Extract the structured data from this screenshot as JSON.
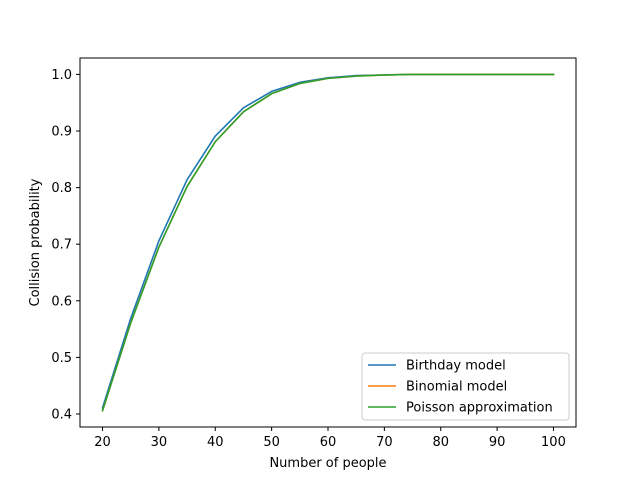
{
  "chart_data": {
    "type": "line",
    "title": "",
    "xlabel": "Number of people",
    "ylabel": "Collision probability",
    "xlim": [
      16,
      104
    ],
    "ylim": [
      0.377,
      1.029
    ],
    "xticks": [
      20,
      30,
      40,
      50,
      60,
      70,
      80,
      90,
      100
    ],
    "yticks": [
      0.4,
      0.5,
      0.6,
      0.7,
      0.8,
      0.9,
      1.0
    ],
    "xtick_labels": [
      "20",
      "30",
      "40",
      "50",
      "60",
      "70",
      "80",
      "90",
      "100"
    ],
    "ytick_labels": [
      "0.4",
      "0.5",
      "0.6",
      "0.7",
      "0.8",
      "0.9",
      "1.0"
    ],
    "grid": false,
    "legend_position": "lower-right",
    "x": [
      20,
      25,
      30,
      35,
      40,
      45,
      50,
      55,
      60,
      65,
      70,
      75,
      80,
      85,
      90,
      95,
      100
    ],
    "series": [
      {
        "name": "Birthday model",
        "color": "#1f77b4",
        "values": [
          0.411,
          0.569,
          0.706,
          0.814,
          0.891,
          0.941,
          0.97,
          0.986,
          0.994,
          0.998,
          0.999,
          1.0,
          1.0,
          1.0,
          1.0,
          1.0,
          1.0
        ]
      },
      {
        "name": "Binomial model",
        "color": "#ff7f0e",
        "values": [
          0.406,
          0.561,
          0.695,
          0.802,
          0.881,
          0.934,
          0.966,
          0.984,
          0.993,
          0.997,
          0.999,
          1.0,
          1.0,
          1.0,
          1.0,
          1.0,
          1.0
        ]
      },
      {
        "name": "Poisson approximation",
        "color": "#2ca02c",
        "values": [
          0.406,
          0.561,
          0.695,
          0.802,
          0.881,
          0.934,
          0.966,
          0.984,
          0.993,
          0.997,
          0.999,
          1.0,
          1.0,
          1.0,
          1.0,
          1.0,
          1.0
        ]
      }
    ]
  }
}
